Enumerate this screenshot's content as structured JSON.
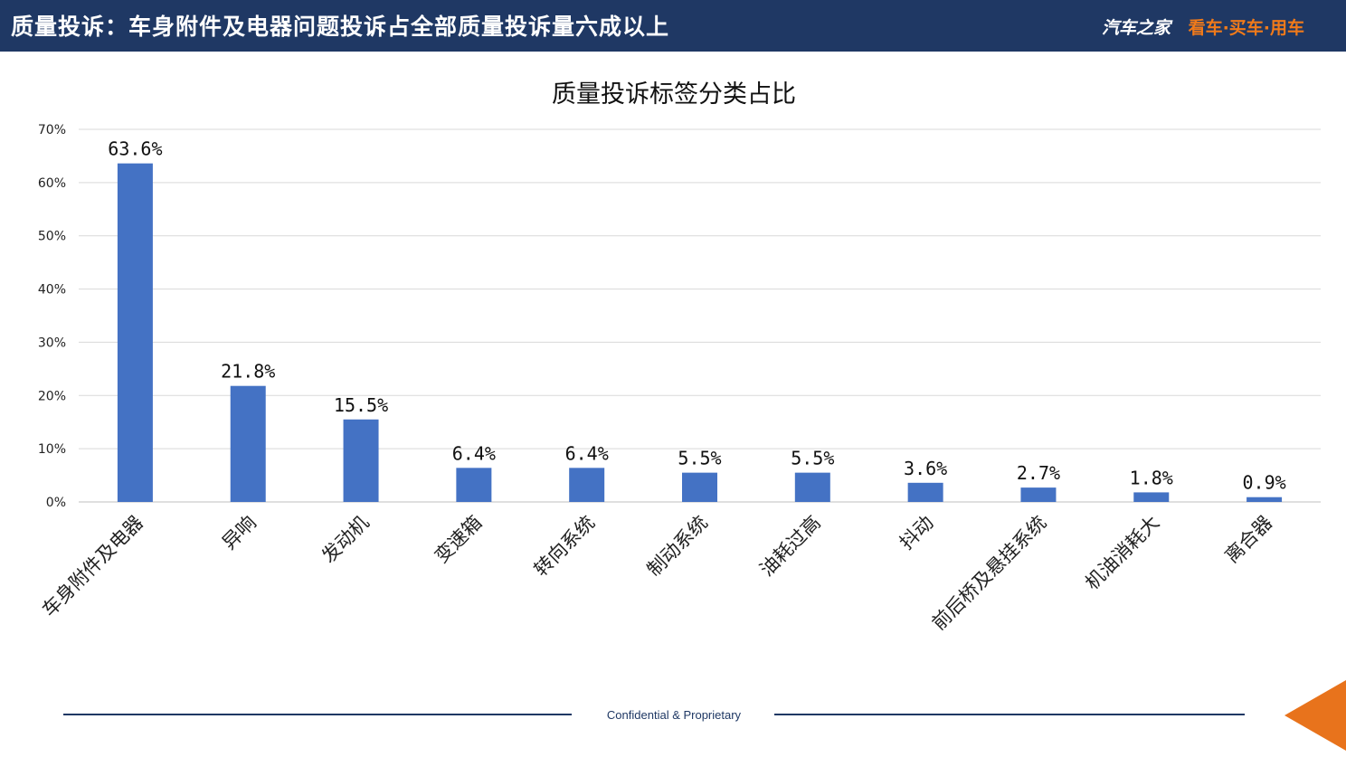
{
  "header": {
    "title": "质量投诉：车身附件及电器问题投诉占全部质量投诉量六成以上",
    "brand_logo": "汽车之家",
    "brand_slogan": "看车·买车·用车"
  },
  "colors": {
    "header_bg": "#1f3864",
    "bar": "#4472c4",
    "accent": "#e8731c"
  },
  "chart_data": {
    "type": "bar",
    "title": "质量投诉标签分类占比",
    "categories": [
      "车身附件及电器",
      "异响",
      "发动机",
      "变速箱",
      "转向系统",
      "制动系统",
      "油耗过高",
      "抖动",
      "前后桥及悬挂系统",
      "机油消耗大",
      "离合器"
    ],
    "values": [
      63.6,
      21.8,
      15.5,
      6.4,
      6.4,
      5.5,
      5.5,
      3.6,
      2.7,
      1.8,
      0.9
    ],
    "data_labels": [
      "63.6%",
      "21.8%",
      "15.5%",
      "6.4%",
      "6.4%",
      "5.5%",
      "5.5%",
      "3.6%",
      "2.7%",
      "1.8%",
      "0.9%"
    ],
    "yticks": [
      "0%",
      "10%",
      "20%",
      "30%",
      "40%",
      "50%",
      "60%",
      "70%"
    ],
    "ylim": [
      0,
      70
    ],
    "grid": true,
    "legend": "none"
  },
  "footer": {
    "text": "Confidential & Proprietary"
  }
}
